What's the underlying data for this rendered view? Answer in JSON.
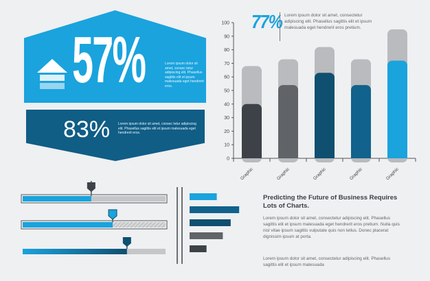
{
  "hero": {
    "percent": "57%",
    "text": "Lorem ipsum dolor sit amet, consec tetur adipiscing elit. Phasellus sagittis elit et ipsum malesuada eget hendrerit eros."
  },
  "secondary": {
    "percent": "83%",
    "text": "Lorem ipsum dolor sit amet, consec tetur adipiscing elit. Phasellus sagittis elit et ipsum malesuada eget hendrerit eros."
  },
  "chart_header": {
    "percent": "77%",
    "text": "Lorem ipsum dolor sit amet, consectetur adipiscing elit. Phasellus sagittis elit et ipsum malesuada eget hendrerit eros pretium."
  },
  "article": {
    "heading": "Predicting the Future of Business Requires Lots of Charts.",
    "para1": "Lorem ipsum dolor sit amet, consectetur adipiscing elit. Phasellus sagittis elit et ipsum malesuada eget hendrerit eros pretium. Nulla quis nisl vitae ipsum sagittis vulputate quis non tellus. Donec placerat dignissim ipsum at porta.",
    "para2": "Lorem ipsum dolor sit amet, consectetur adipiscing elit. Phasellus sagittis elit et ipsum malesuada"
  },
  "chart_data": [
    {
      "type": "bar",
      "categories": [
        "Graphic",
        "Graphic",
        "Graphic",
        "Graphic",
        "Graphic"
      ],
      "series": [
        {
          "values": [
            40,
            54,
            63,
            54,
            72
          ]
        },
        {
          "values": [
            68,
            73,
            82,
            73,
            95
          ]
        }
      ],
      "ylim": [
        0,
        100
      ],
      "yticks": [
        0,
        10,
        20,
        30,
        40,
        50,
        60,
        70,
        80,
        90,
        100
      ],
      "colors": [
        "#3d4248",
        "#606468",
        "#0f4f70",
        "#11628c",
        "#1aa3dd"
      ],
      "bg_color": "#b9bbbe",
      "grid": false
    },
    {
      "type": "bar",
      "orientation": "horizontal",
      "values": [
        45,
        82,
        68,
        55,
        28
      ],
      "xlim": [
        0,
        100
      ],
      "colors": [
        "#1aa3dd",
        "#11628c",
        "#0f4f70",
        "#606468",
        "#3d4248"
      ]
    }
  ],
  "progress_bars": [
    {
      "value": 0.48,
      "style": "solid"
    },
    {
      "value": 0.63,
      "style": "hatched"
    },
    {
      "value": 0.73,
      "style": "gradient"
    }
  ],
  "colors": {
    "accent": "#1aa3dd",
    "dark_blue": "#105d86",
    "navy": "#0f4f70",
    "dark_gray": "#3d4248",
    "light_gray": "#b9bbbe",
    "background": "#eef0f2"
  }
}
